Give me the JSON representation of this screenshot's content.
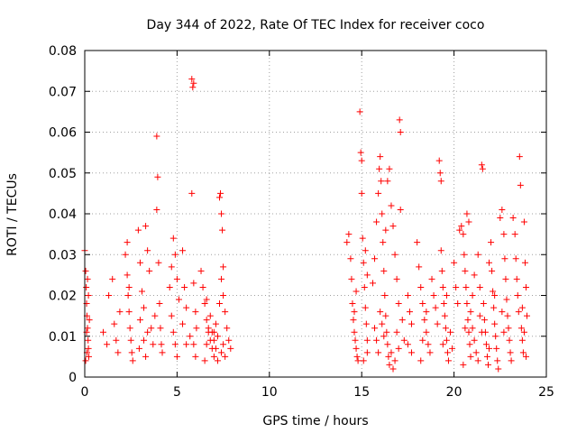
{
  "chart_data": {
    "type": "scatter",
    "title": "Day 344 of 2022, Rate Of TEC Index for receiver coco",
    "xlabel": "GPS time / hours",
    "ylabel": "ROTI / TECUs",
    "xlim": [
      0,
      25
    ],
    "ylim": [
      0,
      0.08
    ],
    "x_ticks": [
      "0",
      "5",
      "10",
      "15",
      "20",
      "25"
    ],
    "y_ticks": [
      "0",
      "0.01",
      "0.02",
      "0.03",
      "0.04",
      "0.05",
      "0.06",
      "0.07",
      "0.08"
    ],
    "grid": true,
    "marker": "plus",
    "color": "#ff0000",
    "series": [
      {
        "points": [
          [
            0.0,
            0.031
          ],
          [
            0.05,
            0.026
          ],
          [
            0.08,
            0.022
          ],
          [
            0.1,
            0.018
          ],
          [
            0.12,
            0.015
          ],
          [
            0.15,
            0.012
          ],
          [
            0.18,
            0.009
          ],
          [
            0.2,
            0.007
          ],
          [
            0.22,
            0.005
          ],
          [
            0.05,
            0.004
          ],
          [
            0.1,
            0.011
          ],
          [
            0.15,
            0.024
          ],
          [
            0.2,
            0.02
          ],
          [
            0.25,
            0.014
          ],
          [
            0.12,
            0.006
          ],
          [
            1.0,
            0.011
          ],
          [
            1.2,
            0.008
          ],
          [
            1.3,
            0.02
          ],
          [
            1.5,
            0.024
          ],
          [
            1.6,
            0.013
          ],
          [
            1.7,
            0.009
          ],
          [
            1.8,
            0.006
          ],
          [
            1.9,
            0.016
          ],
          [
            2.2,
            0.03
          ],
          [
            2.3,
            0.025
          ],
          [
            2.35,
            0.02
          ],
          [
            2.4,
            0.016
          ],
          [
            2.45,
            0.012
          ],
          [
            2.5,
            0.009
          ],
          [
            2.55,
            0.006
          ],
          [
            2.6,
            0.004
          ],
          [
            2.3,
            0.033
          ],
          [
            2.4,
            0.022
          ],
          [
            2.9,
            0.036
          ],
          [
            3.0,
            0.028
          ],
          [
            3.1,
            0.021
          ],
          [
            3.2,
            0.017
          ],
          [
            3.3,
            0.037
          ],
          [
            3.4,
            0.031
          ],
          [
            3.5,
            0.026
          ],
          [
            3.6,
            0.012
          ],
          [
            3.7,
            0.008
          ],
          [
            3.3,
            0.005
          ],
          [
            3.4,
            0.011
          ],
          [
            3.2,
            0.009
          ],
          [
            3.0,
            0.014
          ],
          [
            2.95,
            0.007
          ],
          [
            3.9,
            0.059
          ],
          [
            3.95,
            0.049
          ],
          [
            3.9,
            0.041
          ],
          [
            4.0,
            0.028
          ],
          [
            4.05,
            0.018
          ],
          [
            4.1,
            0.012
          ],
          [
            4.15,
            0.008
          ],
          [
            4.2,
            0.006
          ],
          [
            3.8,
            0.015
          ],
          [
            4.6,
            0.022
          ],
          [
            4.7,
            0.027
          ],
          [
            4.8,
            0.034
          ],
          [
            4.9,
            0.03
          ],
          [
            5.0,
            0.024
          ],
          [
            5.1,
            0.019
          ],
          [
            4.7,
            0.015
          ],
          [
            4.8,
            0.011
          ],
          [
            4.9,
            0.008
          ],
          [
            5.0,
            0.005
          ],
          [
            5.3,
            0.031
          ],
          [
            5.4,
            0.022
          ],
          [
            5.5,
            0.017
          ],
          [
            5.3,
            0.013
          ],
          [
            5.5,
            0.008
          ],
          [
            5.8,
            0.073
          ],
          [
            5.85,
            0.071
          ],
          [
            5.9,
            0.072
          ],
          [
            5.8,
            0.045
          ],
          [
            5.9,
            0.023
          ],
          [
            6.0,
            0.016
          ],
          [
            6.05,
            0.012
          ],
          [
            5.9,
            0.008
          ],
          [
            6.0,
            0.005
          ],
          [
            5.7,
            0.01
          ],
          [
            6.3,
            0.026
          ],
          [
            6.4,
            0.022
          ],
          [
            6.5,
            0.018
          ],
          [
            6.6,
            0.014
          ],
          [
            6.7,
            0.011
          ],
          [
            6.8,
            0.009
          ],
          [
            6.9,
            0.007
          ],
          [
            7.0,
            0.005
          ],
          [
            6.5,
            0.004
          ],
          [
            6.6,
            0.008
          ],
          [
            6.7,
            0.012
          ],
          [
            6.8,
            0.015
          ],
          [
            6.9,
            0.011
          ],
          [
            7.0,
            0.009
          ],
          [
            7.1,
            0.013
          ],
          [
            7.2,
            0.01
          ],
          [
            7.3,
            0.018
          ],
          [
            7.4,
            0.024
          ],
          [
            7.5,
            0.027
          ],
          [
            7.3,
            0.044
          ],
          [
            7.35,
            0.045
          ],
          [
            7.4,
            0.04
          ],
          [
            7.45,
            0.036
          ],
          [
            7.5,
            0.02
          ],
          [
            7.6,
            0.016
          ],
          [
            7.7,
            0.012
          ],
          [
            7.8,
            0.009
          ],
          [
            7.9,
            0.007
          ],
          [
            7.6,
            0.005
          ],
          [
            7.5,
            0.008
          ],
          [
            7.4,
            0.006
          ],
          [
            7.2,
            0.004
          ],
          [
            7.1,
            0.007
          ],
          [
            7.0,
            0.011
          ],
          [
            6.6,
            0.019
          ],
          [
            14.2,
            0.033
          ],
          [
            14.3,
            0.035
          ],
          [
            14.4,
            0.029
          ],
          [
            14.45,
            0.024
          ],
          [
            14.5,
            0.018
          ],
          [
            14.55,
            0.014
          ],
          [
            14.6,
            0.011
          ],
          [
            14.65,
            0.009
          ],
          [
            14.7,
            0.007
          ],
          [
            14.75,
            0.005
          ],
          [
            14.8,
            0.004
          ],
          [
            14.9,
            0.065
          ],
          [
            14.95,
            0.055
          ],
          [
            15.0,
            0.053
          ],
          [
            15.0,
            0.045
          ],
          [
            15.05,
            0.034
          ],
          [
            15.1,
            0.028
          ],
          [
            15.15,
            0.022
          ],
          [
            15.2,
            0.017
          ],
          [
            15.25,
            0.013
          ],
          [
            15.3,
            0.009
          ],
          [
            15.3,
            0.006
          ],
          [
            15.1,
            0.004
          ],
          [
            14.7,
            0.021
          ],
          [
            14.6,
            0.016
          ],
          [
            15.2,
            0.031
          ],
          [
            15.3,
            0.025
          ],
          [
            15.6,
            0.023
          ],
          [
            15.7,
            0.029
          ],
          [
            15.8,
            0.038
          ],
          [
            15.9,
            0.045
          ],
          [
            15.95,
            0.051
          ],
          [
            16.0,
            0.054
          ],
          [
            16.05,
            0.048
          ],
          [
            16.1,
            0.04
          ],
          [
            16.15,
            0.033
          ],
          [
            16.2,
            0.026
          ],
          [
            16.25,
            0.02
          ],
          [
            16.3,
            0.015
          ],
          [
            16.35,
            0.011
          ],
          [
            16.4,
            0.008
          ],
          [
            16.45,
            0.005
          ],
          [
            16.5,
            0.003
          ],
          [
            15.7,
            0.012
          ],
          [
            15.8,
            0.009
          ],
          [
            15.9,
            0.006
          ],
          [
            16.0,
            0.016
          ],
          [
            16.1,
            0.013
          ],
          [
            16.2,
            0.01
          ],
          [
            16.3,
            0.036
          ],
          [
            16.4,
            0.048
          ],
          [
            16.5,
            0.051
          ],
          [
            16.6,
            0.042
          ],
          [
            16.7,
            0.037
          ],
          [
            16.8,
            0.03
          ],
          [
            16.9,
            0.024
          ],
          [
            17.0,
            0.018
          ],
          [
            17.05,
            0.063
          ],
          [
            17.1,
            0.06
          ],
          [
            17.1,
            0.041
          ],
          [
            17.2,
            0.014
          ],
          [
            17.3,
            0.009
          ],
          [
            16.6,
            0.006
          ],
          [
            16.8,
            0.004
          ],
          [
            17.0,
            0.007
          ],
          [
            16.7,
            0.002
          ],
          [
            16.9,
            0.011
          ],
          [
            17.5,
            0.02
          ],
          [
            17.6,
            0.016
          ],
          [
            17.7,
            0.013
          ],
          [
            17.5,
            0.008
          ],
          [
            17.7,
            0.006
          ],
          [
            18.0,
            0.033
          ],
          [
            18.1,
            0.027
          ],
          [
            18.2,
            0.022
          ],
          [
            18.3,
            0.018
          ],
          [
            18.4,
            0.014
          ],
          [
            18.5,
            0.011
          ],
          [
            18.6,
            0.008
          ],
          [
            18.7,
            0.006
          ],
          [
            18.2,
            0.004
          ],
          [
            18.5,
            0.016
          ],
          [
            18.3,
            0.009
          ],
          [
            18.8,
            0.024
          ],
          [
            18.9,
            0.02
          ],
          [
            19.0,
            0.017
          ],
          [
            19.1,
            0.013
          ],
          [
            19.2,
            0.053
          ],
          [
            19.25,
            0.05
          ],
          [
            19.3,
            0.048
          ],
          [
            19.3,
            0.031
          ],
          [
            19.35,
            0.026
          ],
          [
            19.4,
            0.022
          ],
          [
            19.45,
            0.018
          ],
          [
            19.5,
            0.015
          ],
          [
            19.55,
            0.012
          ],
          [
            19.6,
            0.009
          ],
          [
            19.65,
            0.006
          ],
          [
            19.7,
            0.004
          ],
          [
            19.4,
            0.008
          ],
          [
            19.6,
            0.02
          ],
          [
            19.8,
            0.011
          ],
          [
            19.9,
            0.007
          ],
          [
            20.0,
            0.028
          ],
          [
            20.1,
            0.022
          ],
          [
            20.2,
            0.018
          ],
          [
            20.3,
            0.036
          ],
          [
            20.4,
            0.037
          ],
          [
            20.5,
            0.035
          ],
          [
            20.55,
            0.03
          ],
          [
            20.6,
            0.026
          ],
          [
            20.65,
            0.022
          ],
          [
            20.7,
            0.018
          ],
          [
            20.75,
            0.014
          ],
          [
            20.8,
            0.011
          ],
          [
            20.85,
            0.008
          ],
          [
            20.9,
            0.005
          ],
          [
            20.5,
            0.003
          ],
          [
            20.6,
            0.012
          ],
          [
            20.7,
            0.04
          ],
          [
            20.8,
            0.038
          ],
          [
            20.9,
            0.016
          ],
          [
            21.0,
            0.012
          ],
          [
            21.1,
            0.009
          ],
          [
            21.2,
            0.006
          ],
          [
            21.0,
            0.02
          ],
          [
            21.1,
            0.025
          ],
          [
            21.3,
            0.03
          ],
          [
            21.4,
            0.022
          ],
          [
            21.5,
            0.052
          ],
          [
            21.55,
            0.051
          ],
          [
            21.6,
            0.018
          ],
          [
            21.65,
            0.014
          ],
          [
            21.7,
            0.011
          ],
          [
            21.75,
            0.008
          ],
          [
            21.8,
            0.005
          ],
          [
            21.85,
            0.003
          ],
          [
            21.9,
            0.028
          ],
          [
            22.0,
            0.033
          ],
          [
            22.05,
            0.026
          ],
          [
            22.1,
            0.021
          ],
          [
            22.15,
            0.017
          ],
          [
            22.2,
            0.013
          ],
          [
            22.25,
            0.01
          ],
          [
            22.3,
            0.007
          ],
          [
            22.35,
            0.004
          ],
          [
            22.4,
            0.002
          ],
          [
            22.5,
            0.039
          ],
          [
            22.6,
            0.041
          ],
          [
            22.7,
            0.035
          ],
          [
            22.75,
            0.029
          ],
          [
            22.8,
            0.024
          ],
          [
            22.85,
            0.019
          ],
          [
            22.9,
            0.015
          ],
          [
            22.95,
            0.012
          ],
          [
            23.0,
            0.009
          ],
          [
            23.05,
            0.006
          ],
          [
            23.1,
            0.004
          ],
          [
            22.6,
            0.016
          ],
          [
            22.7,
            0.011
          ],
          [
            23.2,
            0.039
          ],
          [
            23.3,
            0.035
          ],
          [
            23.35,
            0.029
          ],
          [
            23.4,
            0.024
          ],
          [
            23.45,
            0.02
          ],
          [
            23.5,
            0.016
          ],
          [
            23.55,
            0.054
          ],
          [
            23.6,
            0.047
          ],
          [
            23.65,
            0.012
          ],
          [
            23.7,
            0.009
          ],
          [
            23.75,
            0.006
          ],
          [
            23.8,
            0.038
          ],
          [
            23.85,
            0.028
          ],
          [
            23.9,
            0.022
          ],
          [
            23.95,
            0.015
          ],
          [
            23.8,
            0.011
          ],
          [
            23.9,
            0.005
          ],
          [
            23.7,
            0.017
          ],
          [
            21.4,
            0.015
          ],
          [
            21.5,
            0.011
          ],
          [
            21.9,
            0.007
          ],
          [
            22.2,
            0.02
          ],
          [
            21.3,
            0.004
          ]
        ]
      }
    ]
  }
}
